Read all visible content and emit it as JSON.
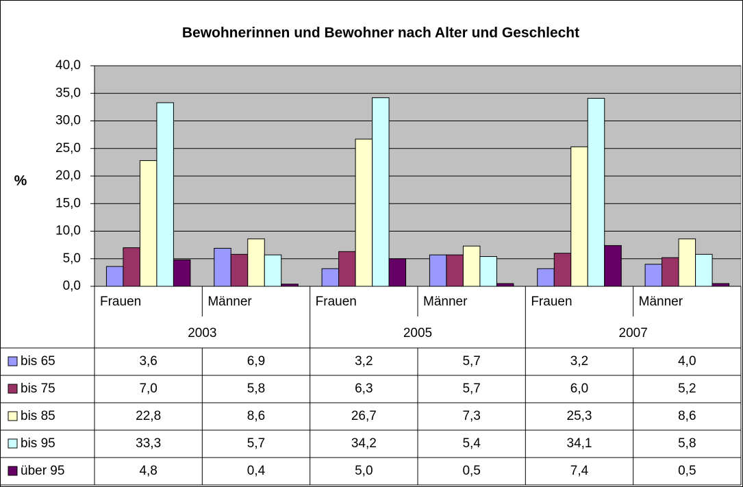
{
  "chart_data": {
    "type": "bar",
    "title": "Bewohnerinnen und Bewohner nach Alter und Geschlecht",
    "y_label": "%",
    "categories": [
      "Frauen",
      "Männer",
      "Frauen",
      "Männer",
      "Frauen",
      "Männer"
    ],
    "category_groups": [
      "2003",
      "2005",
      "2007"
    ],
    "series": [
      {
        "name": "bis 65",
        "color": "#9999ff",
        "values": [
          3.6,
          6.9,
          3.2,
          5.7,
          3.2,
          4.0
        ],
        "value_labels": [
          "3,6",
          "6,9",
          "3,2",
          "5,7",
          "3,2",
          "4,0"
        ]
      },
      {
        "name": "bis 75",
        "color": "#993366",
        "values": [
          7.0,
          5.8,
          6.3,
          5.7,
          6.0,
          5.2
        ],
        "value_labels": [
          "7,0",
          "5,8",
          "6,3",
          "5,7",
          "6,0",
          "5,2"
        ]
      },
      {
        "name": "bis 85",
        "color": "#ffffcc",
        "values": [
          22.8,
          8.6,
          26.7,
          7.3,
          25.3,
          8.6
        ],
        "value_labels": [
          "22,8",
          "8,6",
          "26,7",
          "7,3",
          "25,3",
          "8,6"
        ]
      },
      {
        "name": "bis 95",
        "color": "#ccffff",
        "values": [
          33.3,
          5.7,
          34.2,
          5.4,
          34.1,
          5.8
        ],
        "value_labels": [
          "33,3",
          "5,7",
          "34,2",
          "5,4",
          "34,1",
          "5,8"
        ]
      },
      {
        "name": "über 95",
        "color": "#660066",
        "values": [
          4.8,
          0.4,
          5.0,
          0.5,
          7.4,
          0.5
        ],
        "value_labels": [
          "4,8",
          "0,4",
          "5,0",
          "0,5",
          "7,4",
          "0,5"
        ]
      }
    ],
    "ylim": [
      0,
      40
    ],
    "yticks": [
      {
        "value": 0,
        "label": "0,0"
      },
      {
        "value": 5,
        "label": "5,0"
      },
      {
        "value": 10,
        "label": "10,0"
      },
      {
        "value": 15,
        "label": "15,0"
      },
      {
        "value": 20,
        "label": "20,0"
      },
      {
        "value": 25,
        "label": "25,0"
      },
      {
        "value": 30,
        "label": "30,0"
      },
      {
        "value": 35,
        "label": "35,0"
      },
      {
        "value": 40,
        "label": "40,0"
      }
    ],
    "grid": true,
    "plot_background": "#c0c0c0"
  }
}
